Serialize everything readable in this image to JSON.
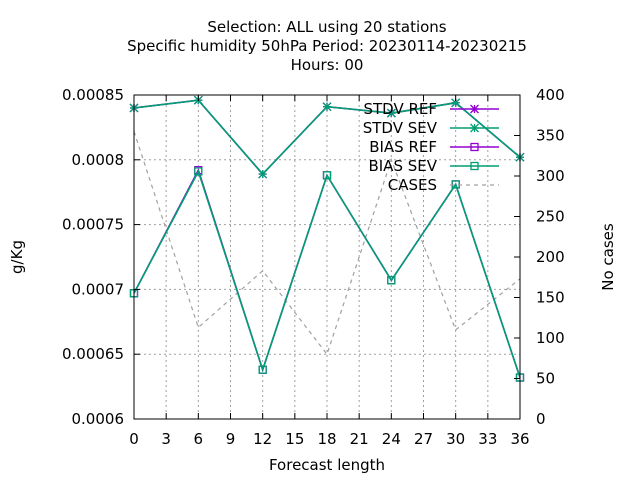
{
  "chart_data": {
    "type": "line",
    "title_lines": [
      "Selection: ALL using    20 stations",
      "Specific humidity 50hPa   Period: 20230114-20230215",
      "Hours:  00"
    ],
    "xlabel": "Forecast length",
    "ylabel": "g/Kg",
    "y2label": "No cases",
    "x_ticks": [
      0,
      3,
      6,
      9,
      12,
      15,
      18,
      21,
      24,
      27,
      30,
      33,
      36
    ],
    "y_ticks": [
      0.0006,
      0.00065,
      0.0007,
      0.00075,
      0.0008,
      0.00085
    ],
    "y_tick_labels": [
      "0.0006",
      "0.00065",
      "0.0007",
      "0.00075",
      "0.0008",
      "0.00085"
    ],
    "y2_ticks": [
      0,
      50,
      100,
      150,
      200,
      250,
      300,
      350,
      400
    ],
    "xlim": [
      0,
      36
    ],
    "ylim": [
      0.0006,
      0.00085
    ],
    "y2lim": [
      0,
      400
    ],
    "grid": true,
    "legend_position": "top-right",
    "series": [
      {
        "name": "STDV REF",
        "axis": "y1",
        "color": "#9400d3",
        "marker": "star",
        "dash": "",
        "x": [
          0,
          6,
          12,
          18,
          24,
          30,
          36
        ],
        "values": [
          0.00084,
          0.000846,
          0.000789,
          0.000841,
          0.000836,
          0.000844,
          0.000802
        ]
      },
      {
        "name": "STDV SEV",
        "axis": "y1",
        "color": "#009e73",
        "marker": "star",
        "dash": "",
        "x": [
          0,
          6,
          12,
          18,
          24,
          30,
          36
        ],
        "values": [
          0.00084,
          0.000846,
          0.000789,
          0.000841,
          0.000836,
          0.000844,
          0.000802
        ]
      },
      {
        "name": "BIAS REF",
        "axis": "y1",
        "color": "#9400d3",
        "marker": "square",
        "dash": "",
        "x": [
          0,
          6,
          12,
          18,
          24,
          30,
          36
        ],
        "values": [
          0.000697,
          0.000792,
          0.000638,
          0.000788,
          0.000707,
          0.000781,
          0.000632
        ]
      },
      {
        "name": "BIAS SEV",
        "axis": "y1",
        "color": "#009e73",
        "marker": "square",
        "dash": "",
        "x": [
          0,
          6,
          12,
          18,
          24,
          30,
          36
        ],
        "values": [
          0.000697,
          0.000791,
          0.000638,
          0.000788,
          0.000707,
          0.000781,
          0.000632
        ]
      },
      {
        "name": "CASES",
        "axis": "y2",
        "color": "#a0a0a0",
        "marker": "none",
        "dash": "4 4",
        "x": [
          0,
          6,
          12,
          18,
          24,
          30,
          36
        ],
        "values": [
          355,
          113,
          183,
          80,
          320,
          110,
          173
        ]
      }
    ]
  }
}
